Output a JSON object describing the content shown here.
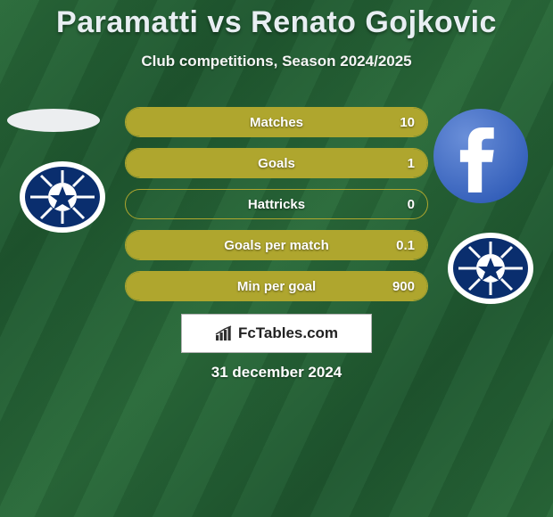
{
  "background": {
    "color_a": "#2a6b3a",
    "color_b": "#1f5830"
  },
  "header": {
    "title": "Paramatti vs Renato Gojkovic",
    "title_color": "#e8eef2",
    "title_fontsize": 34,
    "subtitle": "Club competitions, Season 2024/2025",
    "subtitle_color": "#f5f5f5",
    "subtitle_fontsize": 17
  },
  "stats": {
    "bar_border_color": "#afa62e",
    "bar_fill_color": "#afa62e",
    "label_color": "#ffffff",
    "rows": [
      {
        "label": "Matches",
        "right_value": "10",
        "fill_side": "right",
        "fill_pct": 100
      },
      {
        "label": "Goals",
        "right_value": "1",
        "fill_side": "right",
        "fill_pct": 100
      },
      {
        "label": "Hattricks",
        "right_value": "0",
        "fill_side": "none",
        "fill_pct": 0
      },
      {
        "label": "Goals per match",
        "right_value": "0.1",
        "fill_side": "right",
        "fill_pct": 100
      },
      {
        "label": "Min per goal",
        "right_value": "900",
        "fill_side": "right",
        "fill_pct": 100
      }
    ]
  },
  "avatars": {
    "player_left": {
      "shape": "oval",
      "bg": "#eceef0"
    },
    "player_right_fb": {
      "bg": "#4267b2",
      "fg": "#ffffff"
    },
    "club": {
      "ring_outer": "#ffffff",
      "main": "#0a2e6e",
      "ball_center": "#ffffff",
      "accent": "#2aa2e2"
    }
  },
  "footer": {
    "logo_text": "FcTables.com",
    "logo_bg": "#ffffff",
    "logo_border": "#b3b3b3",
    "logo_icon_color": "#2f2f2f",
    "date": "31 december 2024",
    "date_color": "#ffffff"
  }
}
